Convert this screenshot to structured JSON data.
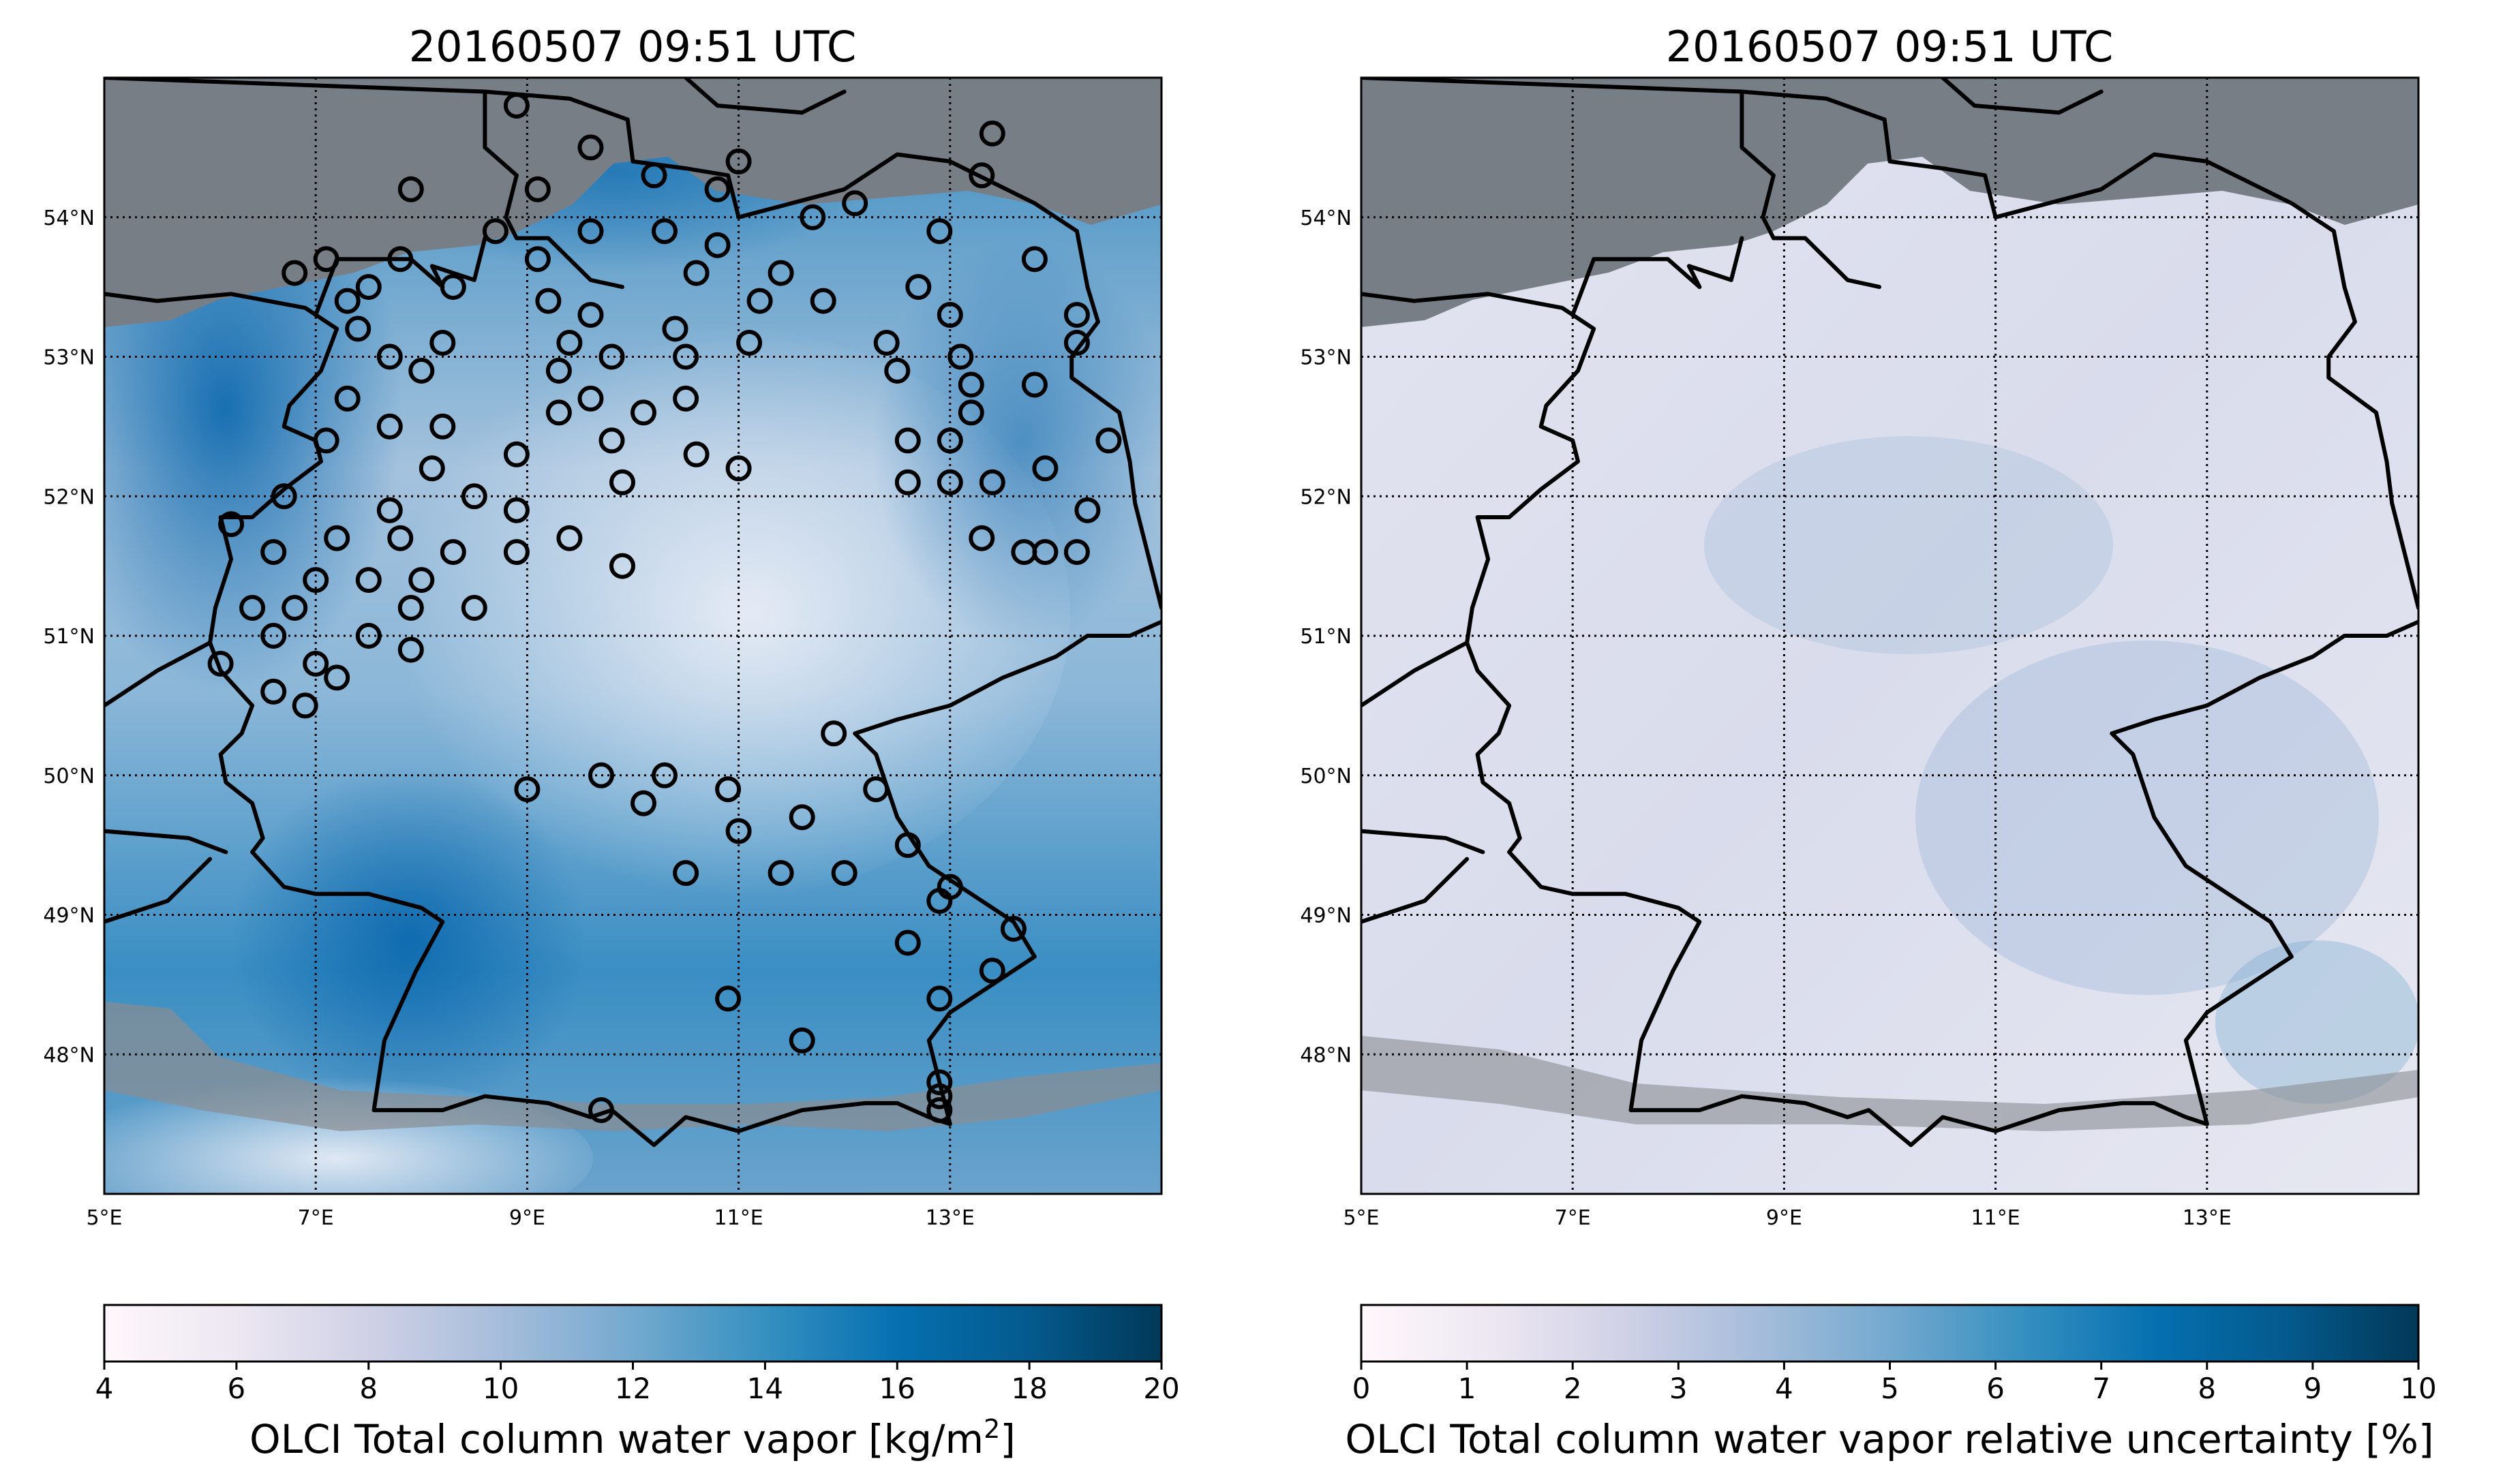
{
  "left_panel": {
    "title": "20160507 09:51 UTC",
    "lon_ticks": [
      "5°E",
      "7°E",
      "9°E",
      "11°E",
      "13°E"
    ],
    "lat_ticks": [
      "54°N",
      "53°N",
      "52°N",
      "51°N",
      "50°N",
      "49°N",
      "48°N"
    ],
    "colorbar": {
      "ticks": [
        "4",
        "6",
        "8",
        "10",
        "12",
        "14",
        "16",
        "18",
        "20"
      ],
      "label": "OLCI Total column water vapor [kg/m",
      "label_sup": "2",
      "label_end": "]",
      "colormap": "PuBu",
      "vmin": 4,
      "vmax": 20
    }
  },
  "right_panel": {
    "title": "20160507 09:51 UTC",
    "lon_ticks": [
      "5°E",
      "7°E",
      "9°E",
      "11°E",
      "13°E"
    ],
    "lat_ticks": [
      "54°N",
      "53°N",
      "52°N",
      "51°N",
      "50°N",
      "49°N",
      "48°N"
    ],
    "colorbar": {
      "ticks": [
        "0",
        "1",
        "2",
        "3",
        "4",
        "5",
        "6",
        "7",
        "8",
        "9",
        "10"
      ],
      "label": "OLCI Total column water vapor relative uncertainty [%]",
      "colormap": "PuBu",
      "vmin": 0,
      "vmax": 10
    }
  },
  "colors": {
    "no_data_gray": "#787e86",
    "cloud_gray": "#8a8d92",
    "cmap_low": "#fff7fb",
    "cmap_mid": "#74a9cf",
    "cmap_high": "#023858"
  },
  "map_extent": {
    "lon_min": 5,
    "lon_max": 15.0,
    "lat_min": 47.0,
    "lat_max": 55.0
  },
  "stations": [
    [
      8.9,
      54.8
    ],
    [
      9.6,
      54.5
    ],
    [
      10.2,
      54.3
    ],
    [
      11.0,
      54.4
    ],
    [
      10.8,
      54.2
    ],
    [
      9.1,
      54.2
    ],
    [
      7.9,
      54.2
    ],
    [
      9.6,
      53.9
    ],
    [
      10.3,
      53.9
    ],
    [
      10.8,
      53.8
    ],
    [
      11.7,
      54.0
    ],
    [
      12.1,
      54.1
    ],
    [
      12.9,
      53.9
    ],
    [
      13.3,
      54.3
    ],
    [
      13.4,
      54.6
    ],
    [
      8.7,
      53.9
    ],
    [
      9.1,
      53.7
    ],
    [
      8.3,
      53.5
    ],
    [
      7.8,
      53.7
    ],
    [
      7.1,
      53.7
    ],
    [
      6.8,
      53.6
    ],
    [
      7.5,
      53.5
    ],
    [
      7.3,
      53.4
    ],
    [
      7.4,
      53.2
    ],
    [
      8.2,
      53.1
    ],
    [
      9.2,
      53.4
    ],
    [
      9.6,
      53.3
    ],
    [
      10.6,
      53.6
    ],
    [
      11.2,
      53.4
    ],
    [
      11.4,
      53.6
    ],
    [
      11.8,
      53.4
    ],
    [
      12.7,
      53.5
    ],
    [
      13.0,
      53.3
    ],
    [
      13.8,
      53.7
    ],
    [
      14.2,
      53.3
    ],
    [
      7.7,
      53.0
    ],
    [
      8.0,
      52.9
    ],
    [
      9.4,
      53.1
    ],
    [
      9.3,
      52.9
    ],
    [
      9.8,
      53.0
    ],
    [
      10.4,
      53.2
    ],
    [
      10.5,
      53.0
    ],
    [
      11.1,
      53.1
    ],
    [
      12.4,
      53.1
    ],
    [
      12.5,
      52.9
    ],
    [
      13.1,
      53.0
    ],
    [
      13.2,
      52.8
    ],
    [
      13.8,
      52.8
    ],
    [
      14.2,
      53.1
    ],
    [
      7.1,
      52.4
    ],
    [
      7.3,
      52.7
    ],
    [
      7.7,
      52.5
    ],
    [
      8.2,
      52.5
    ],
    [
      9.6,
      52.7
    ],
    [
      9.3,
      52.6
    ],
    [
      10.1,
      52.6
    ],
    [
      10.5,
      52.7
    ],
    [
      9.8,
      52.4
    ],
    [
      9.9,
      52.1
    ],
    [
      10.6,
      52.3
    ],
    [
      11.0,
      52.2
    ],
    [
      12.6,
      52.4
    ],
    [
      12.6,
      52.1
    ],
    [
      13.0,
      52.4
    ],
    [
      13.2,
      52.6
    ],
    [
      13.0,
      52.1
    ],
    [
      13.4,
      52.1
    ],
    [
      13.9,
      52.2
    ],
    [
      14.5,
      52.4
    ],
    [
      14.3,
      51.9
    ],
    [
      6.7,
      52.0
    ],
    [
      6.2,
      51.8
    ],
    [
      7.7,
      51.9
    ],
    [
      8.1,
      52.2
    ],
    [
      8.9,
      52.3
    ],
    [
      8.9,
      51.9
    ],
    [
      8.5,
      52.0
    ],
    [
      7.2,
      51.7
    ],
    [
      6.6,
      51.6
    ],
    [
      7.8,
      51.7
    ],
    [
      8.3,
      51.6
    ],
    [
      8.9,
      51.6
    ],
    [
      9.4,
      51.7
    ],
    [
      9.9,
      51.5
    ],
    [
      7.0,
      51.4
    ],
    [
      7.5,
      51.4
    ],
    [
      8.0,
      51.4
    ],
    [
      6.4,
      51.2
    ],
    [
      6.8,
      51.2
    ],
    [
      7.9,
      51.2
    ],
    [
      8.5,
      51.2
    ],
    [
      6.6,
      51.0
    ],
    [
      7.5,
      51.0
    ],
    [
      7.0,
      50.8
    ],
    [
      7.9,
      50.9
    ],
    [
      6.1,
      50.8
    ],
    [
      6.6,
      50.6
    ],
    [
      6.9,
      50.5
    ],
    [
      7.2,
      50.7
    ],
    [
      9.0,
      49.9
    ],
    [
      9.7,
      50.0
    ],
    [
      10.3,
      50.0
    ],
    [
      10.1,
      49.8
    ],
    [
      10.9,
      49.9
    ],
    [
      11.9,
      50.3
    ],
    [
      12.3,
      49.9
    ],
    [
      11.0,
      49.6
    ],
    [
      11.6,
      49.7
    ],
    [
      10.5,
      49.3
    ],
    [
      11.4,
      49.3
    ],
    [
      12.0,
      49.3
    ],
    [
      12.6,
      49.5
    ],
    [
      13.0,
      49.2
    ],
    [
      12.9,
      49.1
    ],
    [
      13.6,
      48.9
    ],
    [
      12.6,
      48.8
    ],
    [
      13.4,
      48.6
    ],
    [
      12.9,
      48.4
    ],
    [
      10.9,
      48.4
    ],
    [
      11.6,
      48.1
    ],
    [
      12.9,
      47.8
    ],
    [
      12.9,
      47.7
    ],
    [
      12.9,
      47.6
    ],
    [
      9.7,
      47.6
    ],
    [
      13.9,
      51.6
    ],
    [
      14.2,
      51.6
    ],
    [
      13.7,
      51.6
    ],
    [
      13.3,
      51.7
    ]
  ]
}
